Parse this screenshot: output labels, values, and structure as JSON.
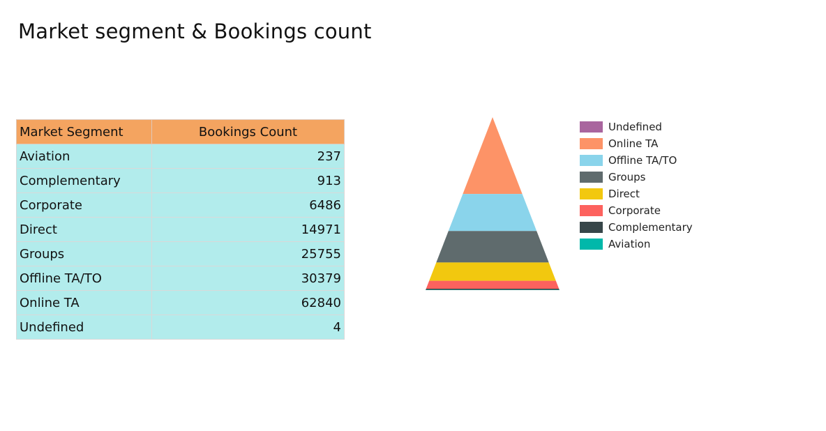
{
  "title": "Market segment & Bookings count",
  "table": {
    "headers": [
      "Market Segment",
      "Bookings Count"
    ],
    "rows": [
      [
        "Aviation",
        "237"
      ],
      [
        "Complementary",
        "913"
      ],
      [
        "Corporate",
        "6486"
      ],
      [
        "Direct",
        "14971"
      ],
      [
        "Groups",
        "25755"
      ],
      [
        "Offline TA/TO",
        "30379"
      ],
      [
        "Online TA",
        "62840"
      ],
      [
        "Undefined",
        "4"
      ]
    ]
  },
  "chart_data": {
    "type": "pyramid",
    "title": "",
    "segments": [
      {
        "name": "Undefined",
        "value": 4,
        "color": "#a9659e"
      },
      {
        "name": "Online TA",
        "value": 62840,
        "color": "#fd9367"
      },
      {
        "name": "Offline TA/TO",
        "value": 30379,
        "color": "#8ad4eb"
      },
      {
        "name": "Groups",
        "value": 25755,
        "color": "#5f6b6d"
      },
      {
        "name": "Direct",
        "value": 14971,
        "color": "#f2c80f"
      },
      {
        "name": "Corporate",
        "value": 6486,
        "color": "#fd625e"
      },
      {
        "name": "Complementary",
        "value": 913,
        "color": "#374649"
      },
      {
        "name": "Aviation",
        "value": 237,
        "color": "#01b8aa"
      }
    ],
    "legend_position": "right",
    "header_color": "#f4a460",
    "row_color": "#b2ecec"
  }
}
